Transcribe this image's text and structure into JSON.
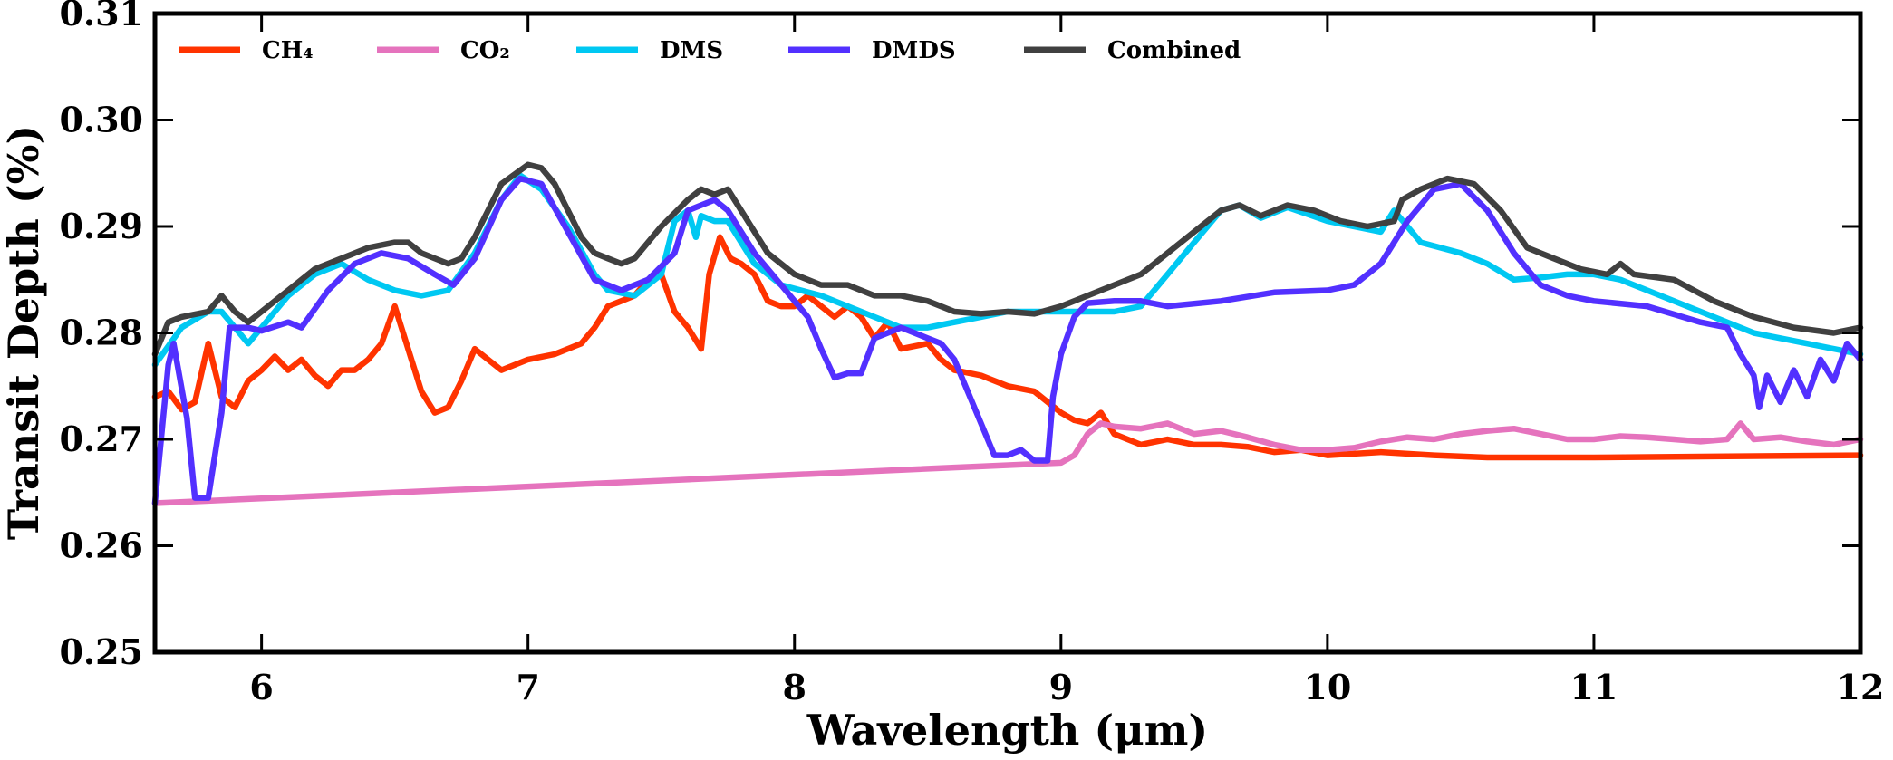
{
  "chart_data": {
    "type": "line",
    "title": "",
    "xlabel": "Wavelength (μm)",
    "ylabel": "Transit Depth (%)",
    "xlim": [
      5.6,
      12
    ],
    "ylim": [
      0.25,
      0.31
    ],
    "xticks": [
      6,
      7,
      8,
      9,
      10,
      11,
      12
    ],
    "xtick_labels": [
      "6",
      "7",
      "8",
      "9",
      "10",
      "11",
      "12"
    ],
    "yticks": [
      0.25,
      0.26,
      0.27,
      0.28,
      0.29,
      0.3,
      0.31
    ],
    "ytick_labels": [
      "0.25",
      "0.26",
      "0.27",
      "0.28",
      "0.29",
      "0.30",
      "0.31"
    ],
    "grid": false,
    "legend_placement": "top",
    "series": [
      {
        "name": "CH₄",
        "color": "#ff3300",
        "x": [
          5.6,
          5.65,
          5.7,
          5.75,
          5.8,
          5.85,
          5.9,
          5.95,
          6.0,
          6.05,
          6.1,
          6.15,
          6.2,
          6.25,
          6.3,
          6.35,
          6.4,
          6.45,
          6.5,
          6.55,
          6.6,
          6.65,
          6.7,
          6.75,
          6.8,
          6.85,
          6.9,
          7.0,
          7.1,
          7.2,
          7.25,
          7.3,
          7.35,
          7.4,
          7.45,
          7.5,
          7.55,
          7.6,
          7.65,
          7.68,
          7.72,
          7.76,
          7.8,
          7.85,
          7.9,
          7.95,
          8.0,
          8.05,
          8.1,
          8.15,
          8.2,
          8.25,
          8.3,
          8.35,
          8.4,
          8.5,
          8.55,
          8.6,
          8.7,
          8.8,
          8.9,
          9.0,
          9.05,
          9.1,
          9.15,
          9.2,
          9.3,
          9.4,
          9.5,
          9.6,
          9.7,
          9.8,
          9.9,
          10.0,
          10.2,
          10.4,
          10.6,
          11.0,
          11.5,
          12.0
        ],
        "y": [
          0.274,
          0.2745,
          0.2728,
          0.2735,
          0.279,
          0.274,
          0.273,
          0.2755,
          0.2765,
          0.2778,
          0.2765,
          0.2775,
          0.276,
          0.275,
          0.2765,
          0.2765,
          0.2775,
          0.279,
          0.2825,
          0.2785,
          0.2745,
          0.2725,
          0.273,
          0.2755,
          0.2785,
          0.2775,
          0.2765,
          0.2775,
          0.278,
          0.279,
          0.2805,
          0.2825,
          0.283,
          0.2835,
          0.285,
          0.2855,
          0.282,
          0.2805,
          0.2785,
          0.2855,
          0.289,
          0.287,
          0.2865,
          0.2855,
          0.283,
          0.2825,
          0.2825,
          0.2835,
          0.2825,
          0.2815,
          0.2825,
          0.2815,
          0.2795,
          0.281,
          0.2785,
          0.279,
          0.2775,
          0.2765,
          0.276,
          0.275,
          0.2745,
          0.2725,
          0.2718,
          0.2715,
          0.2725,
          0.2705,
          0.2695,
          0.27,
          0.2695,
          0.2695,
          0.2693,
          0.2688,
          0.269,
          0.2685,
          0.2688,
          0.2685,
          0.2683,
          0.2683,
          0.2684,
          0.2685
        ]
      },
      {
        "name": "CO₂",
        "color": "#e573bd",
        "x": [
          5.6,
          9.0,
          9.05,
          9.1,
          9.15,
          9.2,
          9.3,
          9.4,
          9.5,
          9.6,
          9.7,
          9.8,
          9.9,
          10.0,
          10.1,
          10.2,
          10.3,
          10.4,
          10.5,
          10.6,
          10.7,
          10.8,
          10.9,
          11.0,
          11.1,
          11.2,
          11.3,
          11.4,
          11.5,
          11.55,
          11.6,
          11.7,
          11.8,
          11.9,
          12.0
        ],
        "y": [
          0.264,
          0.2678,
          0.2685,
          0.2705,
          0.2715,
          0.2712,
          0.271,
          0.2715,
          0.2705,
          0.2708,
          0.2702,
          0.2695,
          0.269,
          0.269,
          0.2692,
          0.2698,
          0.2702,
          0.27,
          0.2705,
          0.2708,
          0.271,
          0.2705,
          0.27,
          0.27,
          0.2703,
          0.2702,
          0.27,
          0.2698,
          0.27,
          0.2715,
          0.27,
          0.2702,
          0.2698,
          0.2695,
          0.27
        ]
      },
      {
        "name": "DMS",
        "color": "#00c8f2",
        "x": [
          5.6,
          5.7,
          5.8,
          5.85,
          5.95,
          6.0,
          6.1,
          6.2,
          6.3,
          6.4,
          6.5,
          6.6,
          6.7,
          6.8,
          6.9,
          6.97,
          7.05,
          7.15,
          7.25,
          7.3,
          7.4,
          7.5,
          7.55,
          7.6,
          7.63,
          7.65,
          7.7,
          7.75,
          7.85,
          7.95,
          8.1,
          8.2,
          8.3,
          8.4,
          8.5,
          8.6,
          8.7,
          8.8,
          9.0,
          9.2,
          9.3,
          9.4,
          9.5,
          9.6,
          9.67,
          9.75,
          9.85,
          10.0,
          10.2,
          10.25,
          10.35,
          10.5,
          10.6,
          10.7,
          10.8,
          10.9,
          11.0,
          11.1,
          11.2,
          11.4,
          11.6,
          11.8,
          12.0
        ],
        "y": [
          0.277,
          0.2805,
          0.282,
          0.282,
          0.279,
          0.2805,
          0.2835,
          0.2855,
          0.2865,
          0.285,
          0.284,
          0.2835,
          0.284,
          0.2875,
          0.2925,
          0.2948,
          0.2935,
          0.29,
          0.2855,
          0.284,
          0.2835,
          0.2855,
          0.2905,
          0.2915,
          0.289,
          0.291,
          0.2905,
          0.2905,
          0.2865,
          0.2845,
          0.2835,
          0.2825,
          0.2815,
          0.2805,
          0.2805,
          0.281,
          0.2815,
          0.282,
          0.282,
          0.282,
          0.2825,
          0.2855,
          0.2885,
          0.2915,
          0.292,
          0.2908,
          0.2918,
          0.2905,
          0.2895,
          0.2915,
          0.2885,
          0.2875,
          0.2865,
          0.285,
          0.2852,
          0.2855,
          0.2855,
          0.285,
          0.284,
          0.282,
          0.28,
          0.279,
          0.278
        ]
      },
      {
        "name": "DMDS",
        "color": "#5230ff",
        "x": [
          5.6,
          5.65,
          5.67,
          5.72,
          5.75,
          5.8,
          5.85,
          5.88,
          5.95,
          6.0,
          6.1,
          6.15,
          6.25,
          6.35,
          6.45,
          6.55,
          6.65,
          6.72,
          6.8,
          6.9,
          6.97,
          7.05,
          7.15,
          7.25,
          7.35,
          7.45,
          7.55,
          7.6,
          7.65,
          7.7,
          7.75,
          7.85,
          7.95,
          8.05,
          8.1,
          8.15,
          8.2,
          8.25,
          8.3,
          8.4,
          8.5,
          8.55,
          8.6,
          8.65,
          8.7,
          8.75,
          8.8,
          8.85,
          8.9,
          8.95,
          8.97,
          9.0,
          9.05,
          9.1,
          9.2,
          9.3,
          9.4,
          9.6,
          9.8,
          10.0,
          10.1,
          10.2,
          10.3,
          10.4,
          10.5,
          10.6,
          10.7,
          10.8,
          10.9,
          11.0,
          11.2,
          11.4,
          11.5,
          11.55,
          11.6,
          11.62,
          11.65,
          11.7,
          11.75,
          11.8,
          11.85,
          11.9,
          11.95,
          12.0
        ],
        "y": [
          0.264,
          0.277,
          0.279,
          0.272,
          0.2645,
          0.2645,
          0.2725,
          0.2805,
          0.2805,
          0.2802,
          0.281,
          0.2805,
          0.284,
          0.2865,
          0.2875,
          0.287,
          0.2855,
          0.2845,
          0.287,
          0.2925,
          0.2945,
          0.294,
          0.2895,
          0.285,
          0.284,
          0.285,
          0.2875,
          0.2915,
          0.292,
          0.2925,
          0.2915,
          0.2875,
          0.2845,
          0.2815,
          0.2785,
          0.2758,
          0.2762,
          0.2762,
          0.2795,
          0.2805,
          0.2795,
          0.279,
          0.2775,
          0.2745,
          0.2715,
          0.2685,
          0.2685,
          0.269,
          0.268,
          0.268,
          0.274,
          0.278,
          0.2815,
          0.2828,
          0.283,
          0.283,
          0.2825,
          0.283,
          0.2838,
          0.284,
          0.2845,
          0.2865,
          0.2905,
          0.2935,
          0.294,
          0.2915,
          0.2875,
          0.2845,
          0.2835,
          0.283,
          0.2825,
          0.281,
          0.2805,
          0.278,
          0.276,
          0.273,
          0.276,
          0.2735,
          0.2765,
          0.274,
          0.2775,
          0.2755,
          0.279,
          0.2775
        ]
      },
      {
        "name": "Combined",
        "color": "#404040",
        "x": [
          5.6,
          5.65,
          5.7,
          5.8,
          5.85,
          5.9,
          5.95,
          6.0,
          6.1,
          6.2,
          6.3,
          6.4,
          6.5,
          6.55,
          6.6,
          6.7,
          6.75,
          6.8,
          6.9,
          7.0,
          7.05,
          7.1,
          7.2,
          7.25,
          7.3,
          7.35,
          7.4,
          7.5,
          7.6,
          7.65,
          7.7,
          7.75,
          7.8,
          7.9,
          8.0,
          8.1,
          8.2,
          8.3,
          8.4,
          8.5,
          8.6,
          8.7,
          8.8,
          8.9,
          9.0,
          9.1,
          9.2,
          9.3,
          9.4,
          9.5,
          9.6,
          9.67,
          9.75,
          9.85,
          9.95,
          10.05,
          10.15,
          10.25,
          10.28,
          10.35,
          10.45,
          10.55,
          10.65,
          10.75,
          10.85,
          10.95,
          11.05,
          11.1,
          11.15,
          11.3,
          11.45,
          11.6,
          11.75,
          11.9,
          12.0
        ],
        "y": [
          0.278,
          0.281,
          0.2815,
          0.282,
          0.2835,
          0.282,
          0.281,
          0.282,
          0.284,
          0.286,
          0.287,
          0.288,
          0.2885,
          0.2885,
          0.2875,
          0.2865,
          0.287,
          0.289,
          0.294,
          0.2958,
          0.2955,
          0.294,
          0.289,
          0.2875,
          0.287,
          0.2865,
          0.287,
          0.29,
          0.2925,
          0.2935,
          0.293,
          0.2935,
          0.2915,
          0.2875,
          0.2855,
          0.2845,
          0.2845,
          0.2835,
          0.2835,
          0.283,
          0.282,
          0.2818,
          0.282,
          0.2818,
          0.2825,
          0.2835,
          0.2845,
          0.2855,
          0.2875,
          0.2895,
          0.2915,
          0.292,
          0.291,
          0.292,
          0.2915,
          0.2905,
          0.29,
          0.2905,
          0.2925,
          0.2935,
          0.2945,
          0.294,
          0.2915,
          0.288,
          0.287,
          0.286,
          0.2855,
          0.2865,
          0.2855,
          0.285,
          0.283,
          0.2815,
          0.2805,
          0.28,
          0.2805
        ]
      }
    ]
  }
}
